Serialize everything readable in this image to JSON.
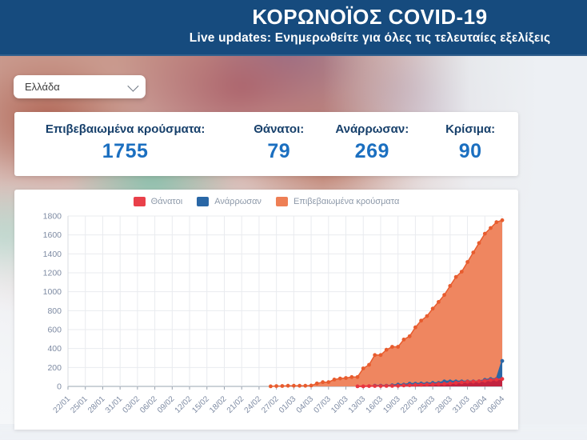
{
  "header": {
    "title": "ΚΟΡΩΝΟΪΟΣ COVID-19",
    "subtitle": "Live updates: Ενημερωθείτε για όλες τις τελευταίες εξελίξεις"
  },
  "country_select": {
    "value": "Ελλάδα"
  },
  "stats": [
    {
      "label": "Επιβεβαιωμένα κρούσματα:",
      "value": "1755"
    },
    {
      "label": "Θάνατοι:",
      "value": "79"
    },
    {
      "label": "Ανάρρωσαν:",
      "value": "269"
    },
    {
      "label": "Κρίσιμα:",
      "value": "90"
    }
  ],
  "colors": {
    "header_bg": "#164b7e",
    "stat_label": "#17406b",
    "stat_value": "#1b6fc0",
    "legend_text": "#8d99a9",
    "axis_text": "#7e8ba3",
    "grid": "#e9ebef",
    "axis_line": "#9aa4b0",
    "plot_border": "#d8dce2"
  },
  "chart_data": {
    "type": "area",
    "title": "",
    "xlabel": "",
    "ylabel": "",
    "ylim": [
      0,
      1800
    ],
    "y_ticks": [
      0,
      200,
      400,
      600,
      800,
      1000,
      1200,
      1400,
      1600,
      1800
    ],
    "x_tick_every": 3,
    "legend_position": "top-center",
    "grid": true,
    "dates": [
      "22/01",
      "23/01",
      "24/01",
      "25/01",
      "26/01",
      "27/01",
      "28/01",
      "29/01",
      "30/01",
      "31/01",
      "01/02",
      "02/02",
      "03/02",
      "04/02",
      "05/02",
      "06/02",
      "07/02",
      "08/02",
      "09/02",
      "10/02",
      "11/02",
      "12/02",
      "13/02",
      "14/02",
      "15/02",
      "16/02",
      "17/02",
      "18/02",
      "19/02",
      "20/02",
      "21/02",
      "22/02",
      "23/02",
      "24/02",
      "25/02",
      "26/02",
      "27/02",
      "28/02",
      "29/02",
      "01/03",
      "02/03",
      "03/03",
      "04/03",
      "05/03",
      "06/03",
      "07/03",
      "08/03",
      "09/03",
      "10/03",
      "11/03",
      "12/03",
      "13/03",
      "14/03",
      "15/03",
      "16/03",
      "17/03",
      "18/03",
      "19/03",
      "20/03",
      "21/03",
      "22/03",
      "23/03",
      "24/03",
      "25/03",
      "26/03",
      "27/03",
      "28/03",
      "29/03",
      "30/03",
      "31/03",
      "01/04",
      "02/04",
      "03/04",
      "04/04",
      "05/04",
      "06/04"
    ],
    "series": [
      {
        "name": "Θάνατοι",
        "legend_color": "#e9404a",
        "dot_color": "#e8353f",
        "fill_color": "#c22340",
        "values": [
          null,
          null,
          null,
          null,
          null,
          null,
          null,
          null,
          null,
          null,
          null,
          null,
          null,
          null,
          null,
          null,
          null,
          null,
          null,
          null,
          null,
          null,
          null,
          null,
          null,
          null,
          null,
          null,
          null,
          null,
          null,
          null,
          null,
          null,
          null,
          null,
          null,
          null,
          null,
          null,
          null,
          null,
          null,
          null,
          null,
          null,
          null,
          null,
          null,
          null,
          1,
          1,
          3,
          4,
          4,
          5,
          5,
          6,
          10,
          13,
          15,
          17,
          20,
          22,
          26,
          28,
          32,
          38,
          43,
          49,
          50,
          53,
          59,
          68,
          73,
          79
        ]
      },
      {
        "name": "Ανάρρωσαν",
        "legend_color": "#2a67a6",
        "dot_color": "#2a67a6",
        "fill_color": "#2a67a6",
        "values": [
          null,
          null,
          null,
          null,
          null,
          null,
          null,
          null,
          null,
          null,
          null,
          null,
          null,
          null,
          null,
          null,
          null,
          null,
          null,
          null,
          null,
          null,
          null,
          null,
          null,
          null,
          null,
          null,
          null,
          null,
          null,
          null,
          null,
          null,
          null,
          null,
          null,
          null,
          null,
          null,
          null,
          null,
          null,
          null,
          null,
          null,
          null,
          null,
          null,
          null,
          null,
          null,
          null,
          8,
          8,
          8,
          11,
          19,
          19,
          29,
          29,
          30,
          30,
          36,
          36,
          52,
          52,
          52,
          52,
          52,
          52,
          54,
          69,
          78,
          78,
          269
        ]
      },
      {
        "name": "Επιβεβαιωμένα κρούσματα",
        "legend_color": "#ee7f55",
        "dot_color": "#e85c2e",
        "fill_color": "#ef8660",
        "values": [
          null,
          null,
          null,
          null,
          null,
          null,
          null,
          null,
          null,
          null,
          null,
          null,
          null,
          null,
          null,
          null,
          null,
          null,
          null,
          null,
          null,
          null,
          null,
          null,
          null,
          null,
          null,
          null,
          null,
          null,
          null,
          null,
          null,
          null,
          null,
          1,
          3,
          4,
          7,
          7,
          7,
          7,
          9,
          31,
          45,
          46,
          73,
          84,
          89,
          99,
          99,
          190,
          228,
          331,
          331,
          387,
          418,
          418,
          495,
          530,
          624,
          695,
          743,
          821,
          892,
          966,
          1061,
          1156,
          1212,
          1314,
          1415,
          1514,
          1613,
          1673,
          1735,
          1755
        ]
      }
    ]
  }
}
